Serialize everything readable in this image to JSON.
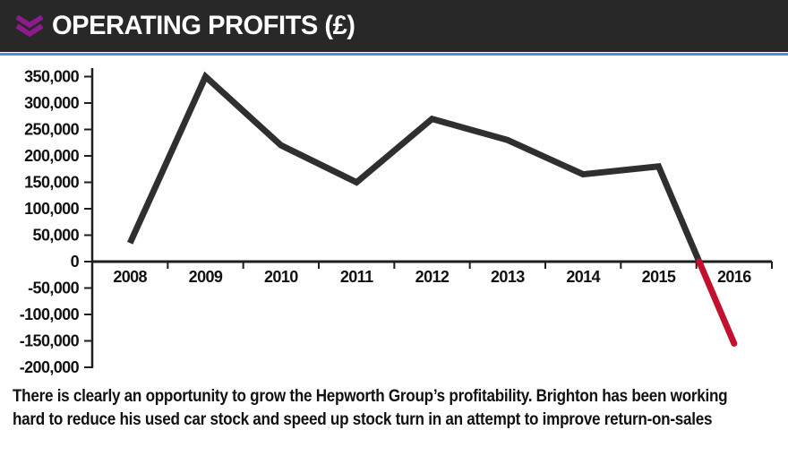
{
  "header": {
    "title": "OPERATING PROFITS (£)",
    "icon": "double-chevron-down-icon",
    "bg_color": "#282828",
    "accent_blue": "#4a90d9",
    "chevron_color": "#8e1b8e"
  },
  "chart_data": {
    "type": "line",
    "title": "OPERATING PROFITS (£)",
    "categories": [
      "2008",
      "2009",
      "2010",
      "2011",
      "2012",
      "2013",
      "2014",
      "2015",
      "2016"
    ],
    "values": [
      35000,
      350000,
      220000,
      150000,
      270000,
      230000,
      165000,
      180000,
      -155000
    ],
    "series": [
      {
        "name": "Operating profit (£)",
        "values": [
          35000,
          350000,
          220000,
          150000,
          270000,
          230000,
          165000,
          180000,
          -155000
        ]
      }
    ],
    "xlabel": "",
    "ylabel": "",
    "ylim": [
      -200000,
      350000
    ],
    "ytick_step": 50000,
    "ytick_labels": [
      "350,000",
      "300,000",
      "250,000",
      "200,000",
      "150,000",
      "100,000",
      "50,000",
      "0",
      "-50,000",
      "-100,000",
      "-150,000",
      "-200,000"
    ],
    "grid": false,
    "legend": false,
    "line_color_positive": "#2f2f2f",
    "line_color_negative": "#c3102f",
    "axis_color": "#1e1e1e",
    "note": "line drawn dark while above zero, red below zero"
  },
  "caption": {
    "lines": [
      "There is clearly an opportunity to grow the Hepworth Group’s profitability. Brighton has been working",
      "hard to reduce his used car stock and speed up stock turn in an attempt to improve return-on-sales"
    ]
  }
}
